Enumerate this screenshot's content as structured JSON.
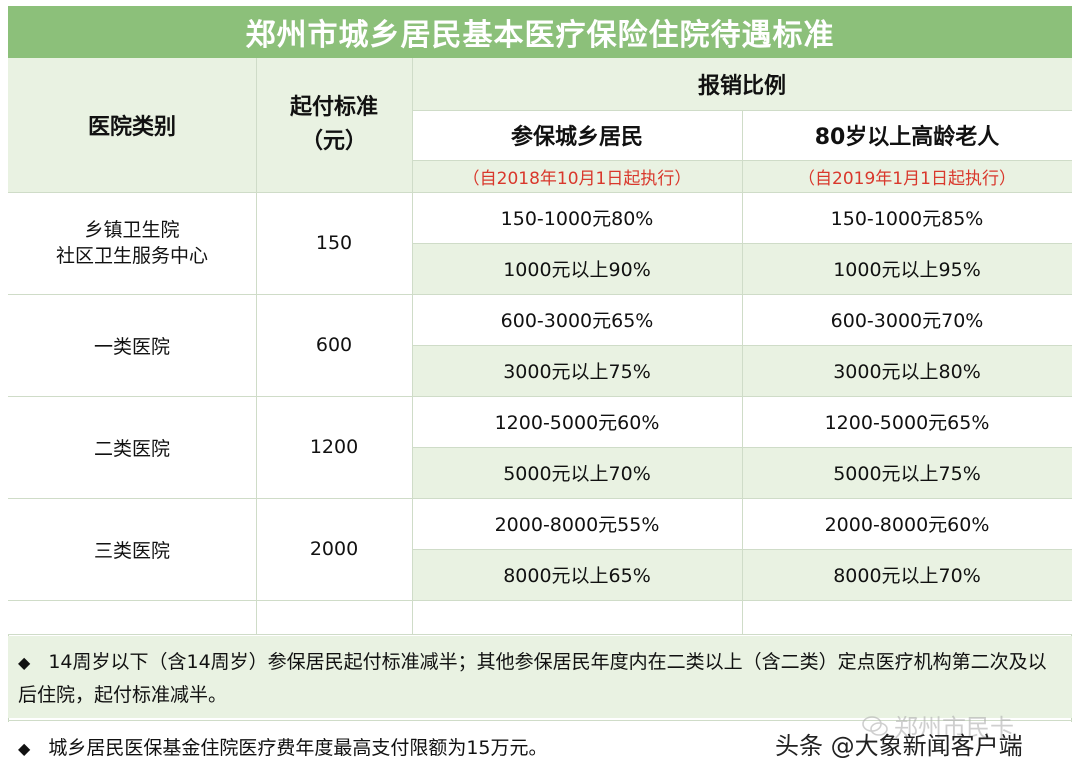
{
  "title": "郑州市城乡居民基本医疗保险住院待遇标准",
  "header": {
    "hospital_type": "医院类别",
    "deductible": "起付标准\n（元）",
    "reimbursement": "报销比例",
    "col_residents": "参保城乡居民",
    "col_elderly": "80岁以上高龄老人",
    "note_residents": "（自2018年10月1日起执行）",
    "note_elderly": "（自2019年1月1日起执行）"
  },
  "rows": [
    {
      "hospital": "乡镇卫生院\n社区卫生服务中心",
      "deductible": "150",
      "r1_res": "150-1000元80%",
      "r1_eld": "150-1000元85%",
      "r2_res": "1000元以上90%",
      "r2_eld": "1000元以上95%"
    },
    {
      "hospital": "一类医院",
      "deductible": "600",
      "r1_res": "600-3000元65%",
      "r1_eld": "600-3000元70%",
      "r2_res": "3000元以上75%",
      "r2_eld": "3000元以上80%"
    },
    {
      "hospital": "二类医院",
      "deductible": "1200",
      "r1_res": "1200-5000元60%",
      "r1_eld": "1200-5000元65%",
      "r2_res": "5000元以上70%",
      "r2_eld": "5000元以上75%"
    },
    {
      "hospital": "三类医院",
      "deductible": "2000",
      "r1_res": "2000-8000元55%",
      "r1_eld": "2000-8000元60%",
      "r2_res": "8000元以上65%",
      "r2_eld": "8000元以上70%"
    }
  ],
  "notes": {
    "bullet": "◆",
    "note1": "14周岁以下（含14周岁）参保居民起付标准减半；其他参保居民年度内在二类以上（含二类）定点医疗机构第二次及以后住院，起付标准减半。",
    "note2": "城乡居民医保基金住院医疗费年度最高支付限额为15万元。"
  },
  "watermark": {
    "main": "头条 @大象新闻客户端",
    "faded": "郑州市民卡"
  },
  "colors": {
    "title_bg": "#8cc07a",
    "row_green": "#e9f2e2",
    "note_red": "#d9382c"
  }
}
